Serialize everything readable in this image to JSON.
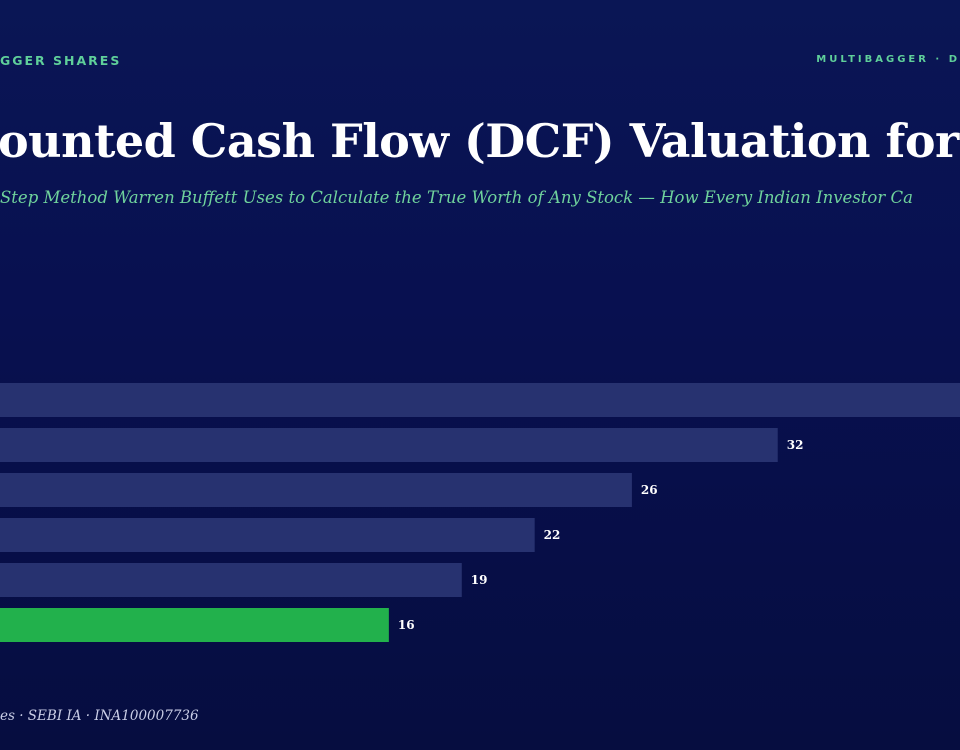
{
  "header": {
    "left_text": "GGER SHARES",
    "right_text": "MULTIBAGGER · D"
  },
  "title": "ounted Cash Flow (DCF) Valuation for",
  "subtitle": "Step Method Warren Buffett Uses to Calculate the True Worth of Any Stock — How Every Indian Investor Ca",
  "footer": "es · SEBI IA · INA100007736",
  "colors": {
    "bar_default": "#273270",
    "bar_highlight": "#22b14c",
    "accent_text": "#5fcf9a"
  },
  "chart_data": {
    "type": "bar",
    "orientation": "horizontal",
    "categories": [
      "",
      "",
      "",
      "",
      "",
      ""
    ],
    "values": [
      39.5,
      32,
      26,
      22,
      19,
      16
    ],
    "data_labels": [
      "",
      "32",
      "26",
      "22",
      "19",
      "16"
    ],
    "highlight_index": 5,
    "title": "",
    "xlabel": "",
    "ylabel": "",
    "xlim": [
      0,
      39.5
    ],
    "grid": false,
    "legend": "none"
  }
}
